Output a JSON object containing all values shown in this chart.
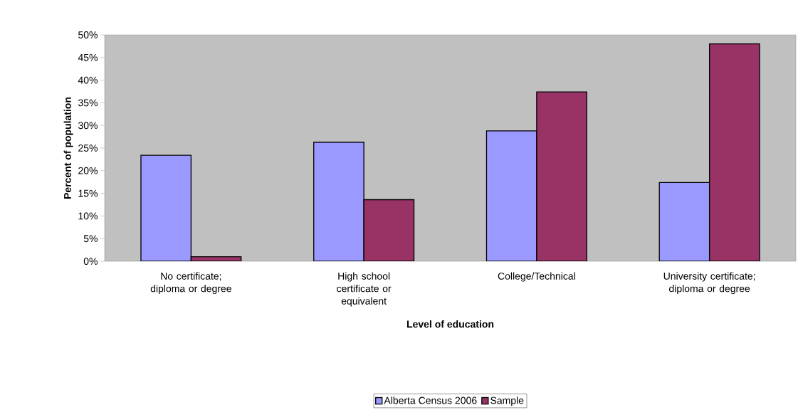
{
  "chart_data": {
    "type": "bar",
    "xlabel": "Level of education",
    "ylabel": "Percent of population",
    "categories": [
      "No certificate; diploma or degree",
      "High school certificate or equivalent",
      "College/Technical",
      "University certificate; diploma or degree"
    ],
    "series": [
      {
        "name": "Alberta Census 2006",
        "color": "#9999ff",
        "values": [
          23.4,
          26.3,
          28.8,
          17.4
        ]
      },
      {
        "name": "Sample",
        "color": "#993366",
        "values": [
          1.0,
          13.6,
          37.4,
          48.0
        ]
      }
    ],
    "ylim": [
      0,
      50
    ],
    "yticks": [
      {
        "value": 0,
        "label": "0%"
      },
      {
        "value": 5,
        "label": "5%"
      },
      {
        "value": 10,
        "label": "10%"
      },
      {
        "value": 15,
        "label": "15%"
      },
      {
        "value": 20,
        "label": "20%"
      },
      {
        "value": 25,
        "label": "25%"
      },
      {
        "value": 30,
        "label": "30%"
      },
      {
        "value": 35,
        "label": "35%"
      },
      {
        "value": 40,
        "label": "40%"
      },
      {
        "value": 45,
        "label": "45%"
      },
      {
        "value": 50,
        "label": "50%"
      }
    ],
    "legend": "bottom"
  }
}
